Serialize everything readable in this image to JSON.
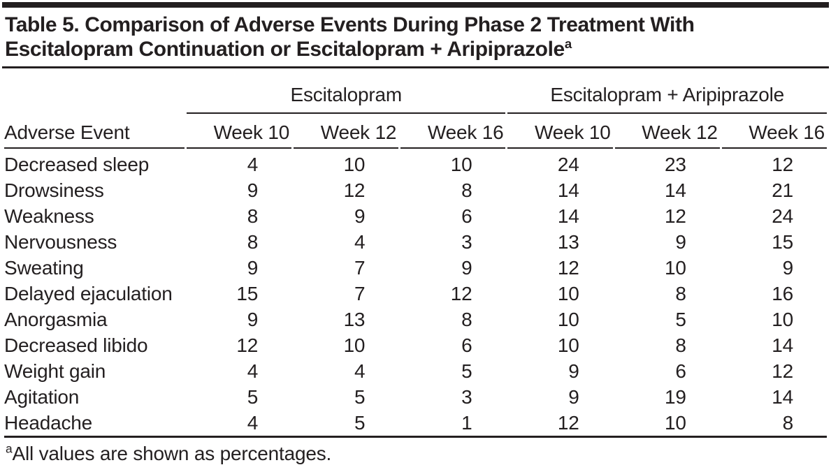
{
  "page": {
    "title_line1": "Table 5. Comparison of Adverse Events During Phase 2 Treatment With",
    "title_line2": "Escitalopram Continuation or Escitalopram + Aripiprazole",
    "title_footnote_marker": "a"
  },
  "table": {
    "row_header_label": "Adverse Event",
    "group1_label": "Escitalopram",
    "group2_label": "Escitalopram + Aripiprazole",
    "week_headers": [
      "Week 10",
      "Week 12",
      "Week 16"
    ],
    "rows": [
      {
        "label": "Decreased sleep",
        "values": [
          4,
          10,
          10,
          24,
          23,
          12
        ]
      },
      {
        "label": "Drowsiness",
        "values": [
          9,
          12,
          8,
          14,
          14,
          21
        ]
      },
      {
        "label": "Weakness",
        "values": [
          8,
          9,
          6,
          14,
          12,
          24
        ]
      },
      {
        "label": "Nervousness",
        "values": [
          8,
          4,
          3,
          13,
          9,
          15
        ]
      },
      {
        "label": "Sweating",
        "values": [
          9,
          7,
          9,
          12,
          10,
          9
        ]
      },
      {
        "label": "Delayed ejaculation",
        "values": [
          15,
          7,
          12,
          10,
          8,
          16
        ]
      },
      {
        "label": "Anorgasmia",
        "values": [
          9,
          13,
          8,
          10,
          5,
          10
        ]
      },
      {
        "label": "Decreased libido",
        "values": [
          12,
          10,
          6,
          10,
          8,
          14
        ]
      },
      {
        "label": "Weight gain",
        "values": [
          4,
          4,
          5,
          9,
          6,
          12
        ]
      },
      {
        "label": "Agitation",
        "values": [
          5,
          5,
          3,
          9,
          19,
          14
        ]
      },
      {
        "label": "Headache",
        "values": [
          4,
          5,
          1,
          12,
          10,
          8
        ]
      }
    ],
    "footnote_marker": "a",
    "footnote_text": "All values are shown as percentages."
  },
  "colors": {
    "text": "#231f20",
    "rule": "#231f20",
    "background": "#ffffff"
  }
}
